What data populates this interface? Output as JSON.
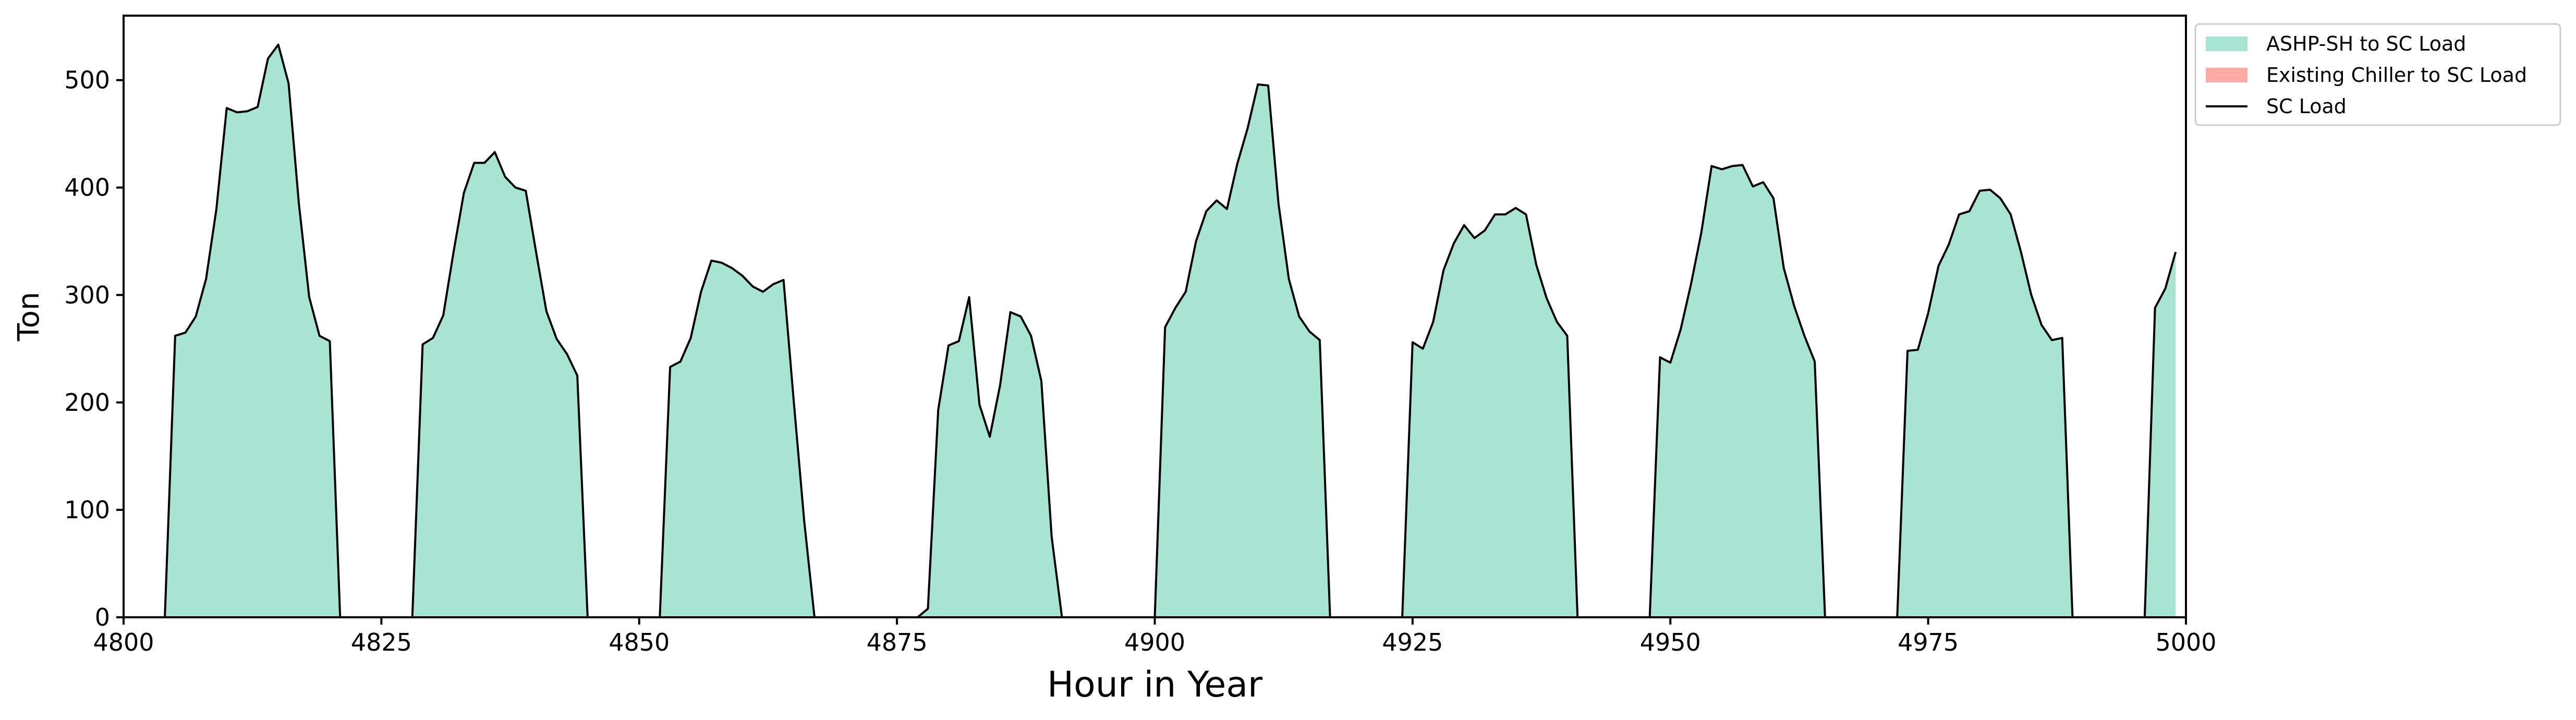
{
  "chart_data": {
    "type": "area",
    "xlabel": "Hour in Year",
    "ylabel": "Ton",
    "xlim": [
      4800,
      5000
    ],
    "ylim": [
      0,
      560
    ],
    "xticks": [
      4800,
      4825,
      4850,
      4875,
      4900,
      4925,
      4950,
      4975,
      5000
    ],
    "yticks": [
      0,
      100,
      200,
      300,
      400,
      500
    ],
    "grid": false,
    "legend": {
      "placement": "outside-top-right",
      "entries": [
        {
          "label": "ASHP-SH to SC Load",
          "kind": "patch",
          "color": "#a8e4d2"
        },
        {
          "label": "Existing Chiller to SC Load",
          "kind": "patch",
          "color": "#ffaba6"
        },
        {
          "label": "SC Load",
          "kind": "line",
          "color": "#000000"
        }
      ]
    },
    "series": [
      {
        "name": "ASHP-SH to SC Load",
        "color": "#a8e4d2",
        "x": [
          4800,
          4801,
          4802,
          4803,
          4804,
          4805,
          4806,
          4807,
          4808,
          4809,
          4810,
          4811,
          4812,
          4813,
          4814,
          4815,
          4816,
          4817,
          4818,
          4819,
          4820,
          4821,
          4822,
          4823,
          4824,
          4825,
          4826,
          4827,
          4828,
          4829,
          4830,
          4831,
          4832,
          4833,
          4834,
          4835,
          4836,
          4837,
          4838,
          4839,
          4840,
          4841,
          4842,
          4843,
          4844,
          4845,
          4846,
          4847,
          4848,
          4849,
          4850,
          4851,
          4852,
          4853,
          4854,
          4855,
          4856,
          4857,
          4858,
          4859,
          4860,
          4861,
          4862,
          4863,
          4864,
          4865,
          4866,
          4867,
          4868,
          4869,
          4870,
          4871,
          4872,
          4873,
          4874,
          4875,
          4876,
          4877,
          4878,
          4879,
          4880,
          4881,
          4882,
          4883,
          4884,
          4885,
          4886,
          4887,
          4888,
          4889,
          4890,
          4891,
          4892,
          4893,
          4894,
          4895,
          4896,
          4897,
          4898,
          4899,
          4900,
          4901,
          4902,
          4903,
          4904,
          4905,
          4906,
          4907,
          4908,
          4909,
          4910,
          4911,
          4912,
          4913,
          4914,
          4915,
          4916,
          4917,
          4918,
          4919,
          4920,
          4921,
          4922,
          4923,
          4924,
          4925,
          4926,
          4927,
          4928,
          4929,
          4930,
          4931,
          4932,
          4933,
          4934,
          4935,
          4936,
          4937,
          4938,
          4939,
          4940,
          4941,
          4942,
          4943,
          4944,
          4945,
          4946,
          4947,
          4948,
          4949,
          4950,
          4951,
          4952,
          4953,
          4954,
          4955,
          4956,
          4957,
          4958,
          4959,
          4960,
          4961,
          4962,
          4963,
          4964,
          4965,
          4966,
          4967,
          4968,
          4969,
          4970,
          4971,
          4972,
          4973,
          4974,
          4975,
          4976,
          4977,
          4978,
          4979,
          4980,
          4981,
          4982,
          4983,
          4984,
          4985,
          4986,
          4987,
          4988,
          4989,
          4990,
          4991,
          4992,
          4993,
          4994,
          4995,
          4996,
          4997,
          4998,
          4999
        ],
        "values": [
          0,
          0,
          0,
          0,
          0,
          262,
          265,
          280,
          315,
          380,
          474,
          470,
          471,
          475,
          520,
          533,
          497,
          385,
          298,
          262,
          257,
          0,
          0,
          0,
          0,
          0,
          0,
          0,
          0,
          254,
          260,
          281,
          340,
          395,
          423,
          423,
          433,
          410,
          400,
          397,
          340,
          285,
          259,
          245,
          225,
          0,
          0,
          0,
          0,
          0,
          0,
          0,
          0,
          233,
          238,
          260,
          303,
          332,
          330,
          325,
          318,
          308,
          303,
          310,
          314,
          200,
          90,
          0,
          0,
          0,
          0,
          0,
          0,
          0,
          0,
          0,
          0,
          0,
          8,
          193,
          253,
          257,
          298,
          198,
          168,
          216,
          284,
          280,
          262,
          220,
          75,
          0,
          0,
          0,
          0,
          0,
          0,
          0,
          0,
          0,
          0,
          270,
          288,
          303,
          350,
          378,
          388,
          380,
          422,
          455,
          496,
          495,
          385,
          315,
          280,
          266,
          258,
          0,
          0,
          0,
          0,
          0,
          0,
          0,
          0,
          256,
          250,
          275,
          323,
          348,
          365,
          353,
          360,
          375,
          375,
          381,
          375,
          328,
          297,
          275,
          262,
          0,
          0,
          0,
          0,
          0,
          0,
          0,
          0,
          242,
          237,
          268,
          310,
          358,
          420,
          417,
          420,
          421,
          401,
          405,
          390,
          325,
          290,
          262,
          238,
          0,
          0,
          0,
          0,
          0,
          0,
          0,
          0,
          248,
          249,
          283,
          327,
          347,
          375,
          378,
          397,
          398,
          390,
          375,
          340,
          300,
          272,
          258,
          260,
          0,
          0,
          0,
          0,
          0,
          0,
          0,
          0,
          288,
          306,
          340
        ]
      },
      {
        "name": "Existing Chiller to SC Load",
        "color": "#ffaba6",
        "values": [
          0
        ]
      },
      {
        "name": "SC Load",
        "color": "#000000"
      }
    ]
  }
}
